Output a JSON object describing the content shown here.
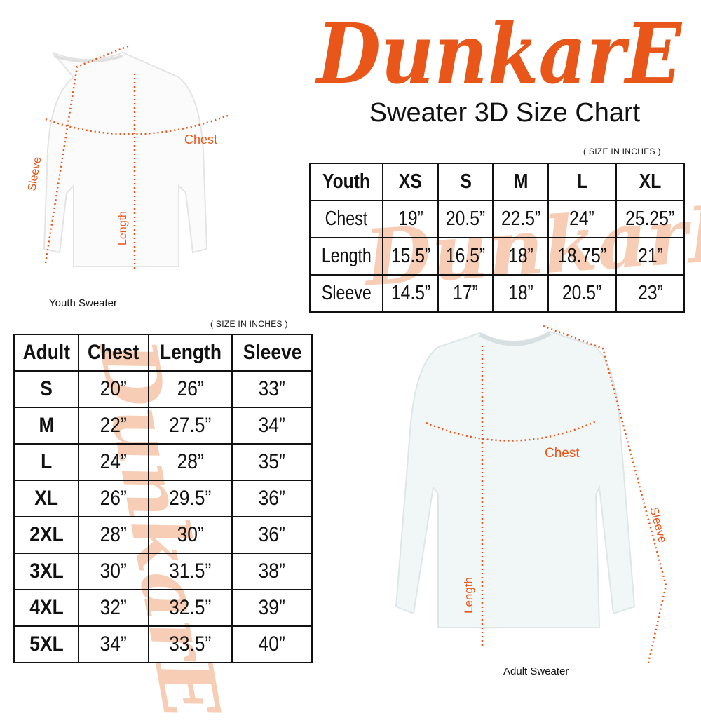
{
  "brand": {
    "logo_text": "DunkarE",
    "color": "#e8561a",
    "watermark_color": "#f7cdb5"
  },
  "title": "Sweater 3D Size Chart",
  "youth": {
    "units_note": "( SIZE IN INCHES )",
    "caption": "Youth Sweater",
    "diagram_labels": {
      "chest": "Chest",
      "length": "Length",
      "sleeve": "Sleeve"
    },
    "header": [
      "Youth",
      "XS",
      "S",
      "M",
      "L",
      "XL"
    ],
    "rows": [
      [
        "Chest",
        "19”",
        "20.5”",
        "22.5”",
        "24”",
        "25.25”"
      ],
      [
        "Length",
        "15.5”",
        "16.5”",
        "18”",
        "18.75”",
        "21”"
      ],
      [
        "Sleeve",
        "14.5”",
        "17”",
        "18”",
        "20.5”",
        "23”"
      ]
    ]
  },
  "adult": {
    "units_note": "( SIZE IN INCHES )",
    "caption": "Adult Sweater",
    "diagram_labels": {
      "chest": "Chest",
      "length": "Length",
      "sleeve": "Sleeve"
    },
    "header": [
      "Adult",
      "Chest",
      "Length",
      "Sleeve"
    ],
    "rows": [
      [
        "S",
        "20”",
        "26”",
        "33”"
      ],
      [
        "M",
        "22”",
        "27.5”",
        "34”"
      ],
      [
        "L",
        "24”",
        "28”",
        "35”"
      ],
      [
        "XL",
        "26”",
        "29.5”",
        "36”"
      ],
      [
        "2XL",
        "28”",
        "30”",
        "36”"
      ],
      [
        "3XL",
        "30”",
        "31.5”",
        "38”"
      ],
      [
        "4XL",
        "32”",
        "32.5”",
        "39”"
      ],
      [
        "5XL",
        "34”",
        "33.5”",
        "40”"
      ]
    ]
  }
}
